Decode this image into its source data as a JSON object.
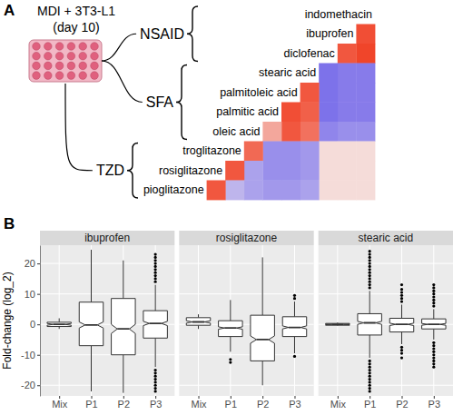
{
  "chart_data": [
    {
      "type": "heatmap",
      "panel_label": "A",
      "plate_label": [
        "MDI + 3T3-L1",
        "(day 10)"
      ],
      "groups": [
        {
          "name": "NSAID",
          "rows": [
            "indomethacin",
            "ibuprofen",
            "diclofenac"
          ]
        },
        {
          "name": "SFA",
          "rows": [
            "stearic acid",
            "palmitoleic acid",
            "palmitic acid",
            "oleic acid"
          ]
        },
        {
          "name": "TZD",
          "rows": [
            "troglitazone",
            "rosiglitazone",
            "pioglitazone"
          ]
        }
      ],
      "values": [
        [],
        [
          0.9
        ],
        [
          0.95,
          0.85
        ],
        [
          -0.6,
          -0.6,
          -0.65
        ],
        [
          -0.6,
          -0.6,
          -0.65,
          0.85
        ],
        [
          -0.6,
          -0.6,
          -0.65,
          0.8,
          0.9
        ],
        [
          -0.5,
          -0.5,
          -0.55,
          0.7,
          0.85,
          0.4
        ],
        [
          0.1,
          0.1,
          0.1,
          -0.45,
          -0.5,
          -0.5,
          0.75
        ],
        [
          0.1,
          0.1,
          0.1,
          -0.45,
          -0.5,
          -0.5,
          -0.4,
          0.85
        ],
        [
          0.1,
          0.1,
          0.1,
          -0.4,
          -0.45,
          -0.45,
          -0.4,
          -0.3,
          0.85
        ]
      ],
      "color_scale": {
        "domain": [
          -1,
          0,
          1
        ],
        "colors": [
          "#3d2fe8",
          "#f5eeee",
          "#f03c20"
        ]
      }
    },
    {
      "type": "box",
      "panel_label": "B",
      "y_label": "Fold-change (log_2)",
      "ylim": [
        -23.5,
        26
      ],
      "yticks": [
        -20,
        -10,
        0,
        10,
        20
      ],
      "grid": true,
      "categories": [
        "Mix",
        "P1",
        "P2",
        "P3"
      ],
      "panels": [
        {
          "title": "ibuprofen",
          "boxes": [
            {
              "whisker_low": -1.5,
              "q1": -0.7,
              "median": 0,
              "q3": 0.7,
              "whisker_high": 2,
              "notch_low": -0.3,
              "notch_high": 0.3,
              "outliers": []
            },
            {
              "whisker_low": -22,
              "q1": -7,
              "median": -0.2,
              "q3": 7.3,
              "whisker_high": 24.5,
              "notch_low": -1.2,
              "notch_high": 0.8,
              "outliers": []
            },
            {
              "whisker_low": -22.5,
              "q1": -10,
              "median": -1.5,
              "q3": 8.5,
              "whisker_high": 21,
              "notch_low": -3,
              "notch_high": 0,
              "outliers": []
            },
            {
              "whisker_low": -14,
              "q1": -4.5,
              "median": 0.3,
              "q3": 4.5,
              "whisker_high": 13,
              "notch_low": -0.4,
              "notch_high": 1,
              "outliers": [
                14,
                15,
                16,
                17,
                18,
                19,
                20,
                21,
                22,
                23,
                -15,
                -16,
                -17,
                -18,
                -19,
                -20,
                -21,
                -22
              ]
            }
          ]
        },
        {
          "title": "rosiglitazone",
          "boxes": [
            {
              "whisker_low": -1.5,
              "q1": -0.3,
              "median": 0.8,
              "q3": 2.2,
              "whisker_high": 3.3,
              "notch_low": 0.4,
              "notch_high": 1.2,
              "outliers": []
            },
            {
              "whisker_low": -9,
              "q1": -4,
              "median": -1.2,
              "q3": 1.2,
              "whisker_high": 8,
              "notch_low": -1.6,
              "notch_high": -0.8,
              "outliers": [
                -11.5,
                -12.5
              ]
            },
            {
              "whisker_low": -20,
              "q1": -12,
              "median": -5,
              "q3": 3,
              "whisker_high": 22,
              "notch_low": -6.2,
              "notch_high": -3.8,
              "outliers": []
            },
            {
              "whisker_low": -9.5,
              "q1": -4,
              "median": -1,
              "q3": 2.5,
              "whisker_high": 7.5,
              "notch_low": -1.5,
              "notch_high": -0.5,
              "outliers": [
                8.5,
                9.5,
                -10.5
              ]
            }
          ]
        },
        {
          "title": "stearic acid",
          "boxes": [
            {
              "whisker_low": -0.5,
              "q1": -0.3,
              "median": 0,
              "q3": 0.3,
              "whisker_high": 0.6,
              "notch_low": -0.1,
              "notch_high": 0.1,
              "outliers": []
            },
            {
              "whisker_low": -11,
              "q1": -3.5,
              "median": 0.5,
              "q3": 3.5,
              "whisker_high": 11,
              "notch_low": 0,
              "notch_high": 1,
              "outliers": [
                12,
                13,
                14,
                15,
                16,
                17,
                18,
                19,
                20,
                21,
                22,
                23,
                24,
                -12,
                -13,
                -14,
                -15,
                -16,
                -17,
                -18,
                -19,
                -20,
                -21,
                -22
              ]
            },
            {
              "whisker_low": -6.5,
              "q1": -2.5,
              "median": 0,
              "q3": 2,
              "whisker_high": 6.5,
              "notch_low": -0.4,
              "notch_high": 0.4,
              "outliers": [
                7.5,
                8.5,
                9.5,
                10.5,
                11.5,
                13,
                -7.5,
                -8.5,
                -9.5,
                -11
              ]
            },
            {
              "whisker_low": -5,
              "q1": -1.5,
              "median": 0,
              "q3": 1.8,
              "whisker_high": 5,
              "notch_low": -0.3,
              "notch_high": 0.3,
              "outliers": [
                6,
                7,
                8,
                9,
                10,
                11,
                12,
                13,
                -6,
                -7,
                -8,
                -9,
                -10,
                -11,
                -12,
                -13,
                -14
              ]
            }
          ]
        }
      ]
    }
  ]
}
